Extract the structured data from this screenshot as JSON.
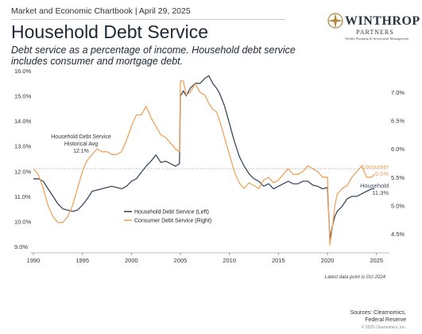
{
  "header": {
    "chartbook": "Market and Economic Chartbook | April 29, 2025",
    "title": "Household Debt Service",
    "subtitle": "Debt service as a percentage of income. Household debt service includes consumer and mortgage debt."
  },
  "logo": {
    "name": "WINTHROP",
    "sub": "PARTNERS",
    "tag": "Wealth Planning & Investment Management"
  },
  "footer": {
    "note": "Latest data point is Oct 2024",
    "sources_line1": "Sources: Clearnomics,",
    "sources_line2": "Federal Reserve",
    "copyright": "© 2025 Clearnomics, Inc."
  },
  "chart_data": {
    "type": "line",
    "x_range": [
      1990,
      2026
    ],
    "x_ticks": [
      "1990",
      "1995",
      "2000",
      "2005",
      "2010",
      "2015",
      "2020",
      "2025"
    ],
    "y_left": {
      "range": [
        9.0,
        16.0
      ],
      "ticks": [
        "9.0%",
        "10.0%",
        "11.0%",
        "12.0%",
        "13.0%",
        "14.0%",
        "15.0%",
        "16.0%"
      ]
    },
    "y_right": {
      "range": [
        4.2,
        7.2
      ],
      "ticks": [
        "4.5%",
        "5.0%",
        "5.5%",
        "6.0%",
        "6.5%",
        "7.0%"
      ]
    },
    "grid": false,
    "legend": {
      "position": "center-left",
      "entries": [
        {
          "label": "Household Debt Service (Left)",
          "color": "#3a4a5e"
        },
        {
          "label": "Consumer Debt Service (Right)",
          "color": "#f0a35c"
        }
      ]
    },
    "series": [
      {
        "name": "Household Debt Service (Left)",
        "axis": "left",
        "color": "#3a4a5e",
        "x": [
          1990,
          1990.5,
          1991,
          1991.5,
          1992,
          1992.5,
          1993,
          1993.5,
          1994,
          1994.5,
          1995,
          1995.5,
          1996,
          1996.5,
          1997,
          1997.5,
          1998,
          1998.5,
          1999,
          1999.5,
          2000,
          2000.5,
          2001,
          2001.5,
          2002,
          2002.5,
          2003,
          2003.5,
          2004,
          2004.5,
          2004.9,
          2005,
          2005.3,
          2005.6,
          2006,
          2006.5,
          2007,
          2007.5,
          2007.9,
          2008.3,
          2008.7,
          2009,
          2009.5,
          2010,
          2010.5,
          2011,
          2011.5,
          2012,
          2012.5,
          2013,
          2013.5,
          2014,
          2014.5,
          2015,
          2015.5,
          2016,
          2016.5,
          2017,
          2017.5,
          2018,
          2018.5,
          2019,
          2019.5,
          2020,
          2020.25,
          2020.5,
          2020.75,
          2021,
          2021.5,
          2022,
          2022.5,
          2023,
          2023.5,
          2024,
          2024.5,
          2024.8
        ],
        "values": [
          11.7,
          11.7,
          11.6,
          11.3,
          11.0,
          10.7,
          10.5,
          10.45,
          10.4,
          10.45,
          10.65,
          10.9,
          11.2,
          11.25,
          11.3,
          11.35,
          11.4,
          11.35,
          11.3,
          11.4,
          11.6,
          11.7,
          11.95,
          12.2,
          12.4,
          12.65,
          12.35,
          12.4,
          12.3,
          12.2,
          12.3,
          15.0,
          15.2,
          15.0,
          15.3,
          15.5,
          15.5,
          15.7,
          15.8,
          15.5,
          15.3,
          15.1,
          14.6,
          13.9,
          13.2,
          12.6,
          12.2,
          11.9,
          11.7,
          11.6,
          11.4,
          11.5,
          11.3,
          11.4,
          11.5,
          11.6,
          11.5,
          11.5,
          11.6,
          11.6,
          11.45,
          11.4,
          11.3,
          11.35,
          9.3,
          9.8,
          10.2,
          10.4,
          10.6,
          10.9,
          11.0,
          11.0,
          11.1,
          11.2,
          11.3,
          11.3
        ]
      },
      {
        "name": "Consumer Debt Service (Right)",
        "axis": "right",
        "color": "#f0a35c",
        "x": [
          1990,
          1990.5,
          1991,
          1991.5,
          1992,
          1992.5,
          1993,
          1993.5,
          1994,
          1994.5,
          1995,
          1995.5,
          1996,
          1996.5,
          1997,
          1997.5,
          1998,
          1998.5,
          1999,
          1999.5,
          2000,
          2000.5,
          2001,
          2001.5,
          2002,
          2002.5,
          2003,
          2003.5,
          2004,
          2004.5,
          2004.9,
          2005,
          2005.3,
          2005.6,
          2006,
          2006.5,
          2007,
          2007.5,
          2007.9,
          2008.3,
          2008.7,
          2009,
          2009.5,
          2010,
          2010.5,
          2011,
          2011.5,
          2012,
          2012.5,
          2013,
          2013.5,
          2014,
          2014.5,
          2015,
          2015.5,
          2016,
          2016.5,
          2017,
          2017.5,
          2018,
          2018.5,
          2019,
          2019.5,
          2020,
          2020.25,
          2020.5,
          2020.75,
          2021,
          2021.5,
          2022,
          2022.5,
          2023,
          2023.5,
          2024,
          2024.5,
          2024.8
        ],
        "values": [
          5.65,
          5.55,
          5.3,
          5.0,
          4.8,
          4.7,
          4.7,
          4.8,
          5.0,
          5.3,
          5.6,
          5.8,
          5.9,
          6.0,
          5.95,
          5.95,
          5.9,
          5.9,
          5.95,
          6.15,
          6.4,
          6.6,
          6.6,
          6.75,
          6.55,
          6.4,
          6.25,
          6.2,
          6.1,
          6.0,
          5.95,
          7.2,
          7.2,
          6.95,
          7.0,
          7.15,
          7.0,
          6.95,
          6.8,
          6.7,
          6.65,
          6.5,
          6.2,
          5.9,
          5.6,
          5.4,
          5.3,
          5.4,
          5.35,
          5.3,
          5.45,
          5.5,
          5.4,
          5.45,
          5.55,
          5.65,
          5.55,
          5.55,
          5.6,
          5.7,
          5.65,
          5.6,
          5.5,
          5.5,
          4.3,
          4.6,
          5.0,
          5.2,
          5.3,
          5.35,
          5.5,
          5.6,
          5.7,
          5.5,
          5.5,
          5.55
        ]
      }
    ],
    "annotations": [
      {
        "id": "avg",
        "lines": [
          "Household Debt Service",
          "Historical Avg",
          "12.1%"
        ],
        "y": 12.1,
        "axis": "left"
      },
      {
        "id": "consumer",
        "lines": [
          "Consumer",
          "5.5%"
        ],
        "color": "#f0a35c"
      },
      {
        "id": "household",
        "lines": [
          "Household",
          "11.3%"
        ],
        "color": "#3a4a5e"
      }
    ]
  }
}
